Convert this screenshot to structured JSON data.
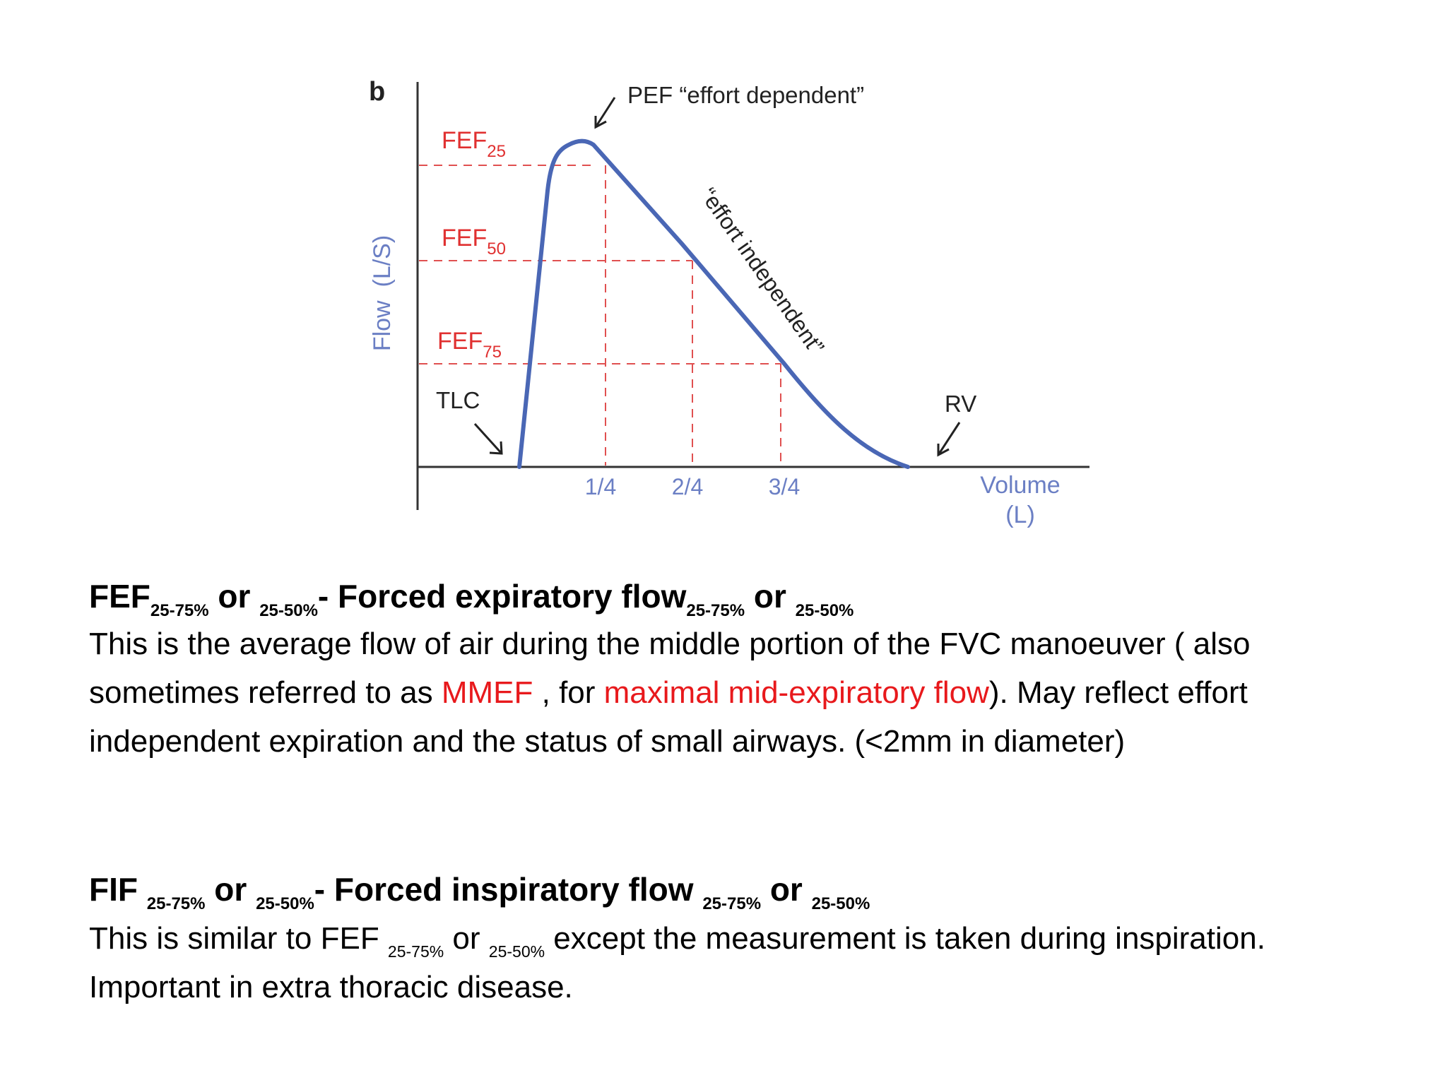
{
  "figure": {
    "panel_letter": "b",
    "y_axis_label": "Flow  (L/S)",
    "x_axis_label_line1": "Volume",
    "x_axis_label_line2": "(L)",
    "peak_annotation": "PEF “effort dependent”",
    "slope_annotation": "“effort independent”",
    "tlc_label": "TLC",
    "rv_label": "RV",
    "fef25_base": "FEF",
    "fef25_sub": "25",
    "fef50_base": "FEF",
    "fef50_sub": "50",
    "fef75_base": "FEF",
    "fef75_sub": "75",
    "x_ticks": [
      "1/4",
      "2/4",
      "3/4"
    ],
    "colors": {
      "curve": "#4a67b5",
      "fef_label": "#e03030",
      "guide": "#e05050",
      "axis_label": "#6b7fc4"
    }
  },
  "section1": {
    "title_base": "FEF",
    "title_sub1": "25-75%",
    "title_or1": " or ",
    "title_sub2": "25-50%",
    "title_main": "- Forced expiratory flow",
    "title_sub3": "25-75%",
    "title_or2": " or ",
    "title_sub4": "25-50%",
    "text_part1": "This is the average flow of air during the middle portion of the FVC manoeuver  ( also sometimes referred to as ",
    "text_mmef": "MMEF",
    "text_part2": " , for ",
    "text_maximal": "maximal mid-expiratory flow",
    "text_part3": "). May reflect effort independent expiration and the status of small airways. (<2mm in diameter)"
  },
  "section2": {
    "title_base": "FIF ",
    "title_sub1": "25-75%",
    "title_or1": " or ",
    "title_sub2": "25-50%",
    "title_main": "- Forced inspiratory flow ",
    "title_sub3": "25-75%",
    "title_or2": " or ",
    "title_sub4": "25-50%",
    "text_part1": "This is similar to FEF ",
    "text_sub1": "25-75%",
    "text_or": " or ",
    "text_sub2": "25-50%",
    "text_part2": " except the measurement is taken during inspiration. Important in extra thoracic disease."
  }
}
